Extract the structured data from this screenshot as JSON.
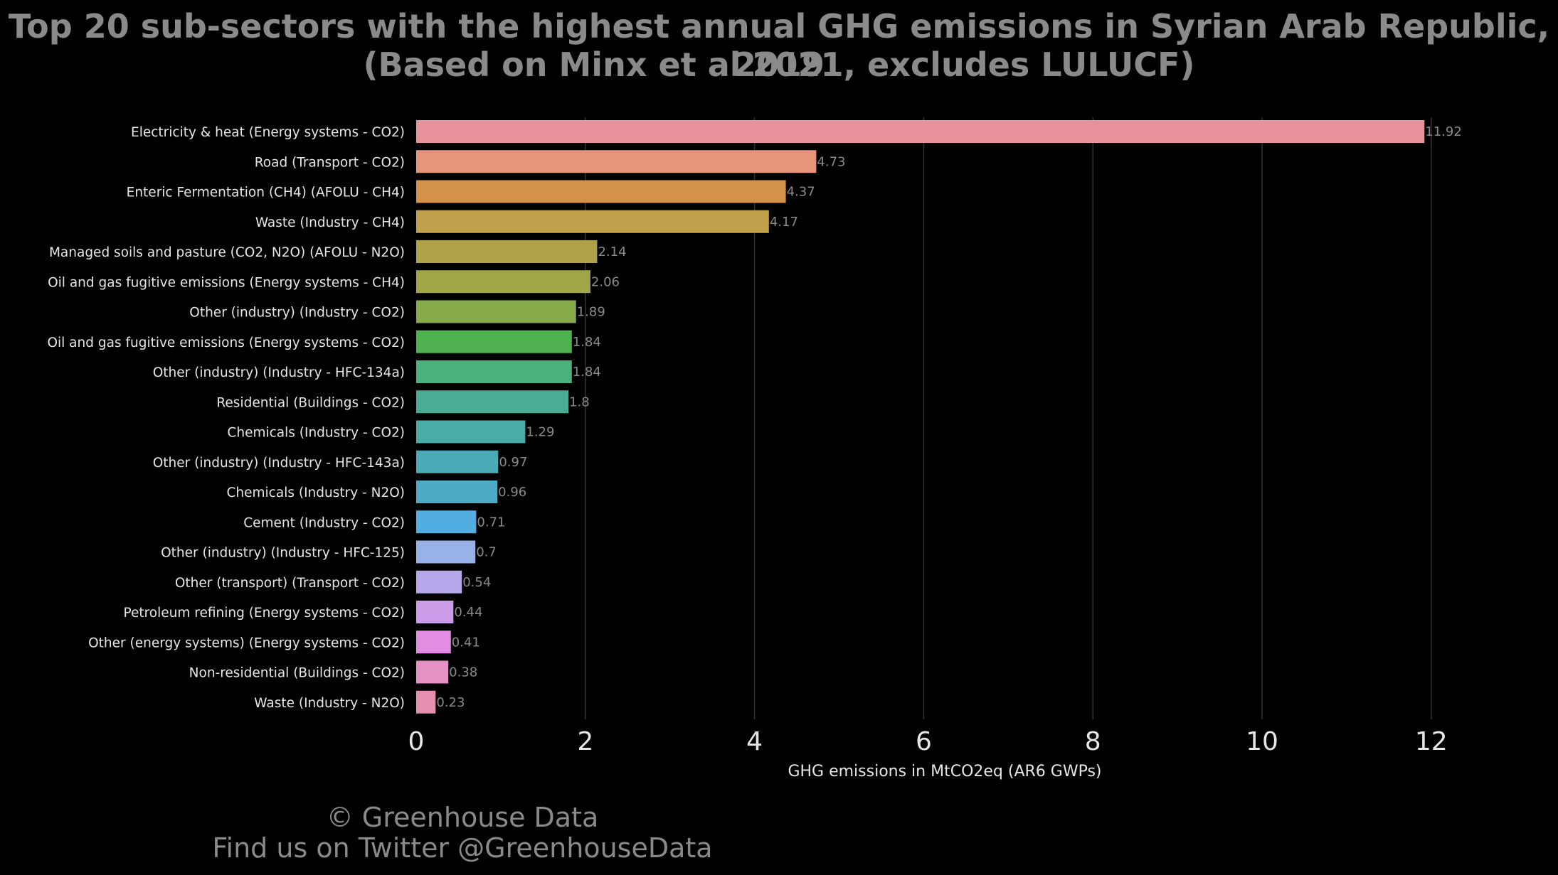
{
  "title_line1": "Top 20 sub-sectors with the highest annual GHG emissions in Syrian Arab Republic, 2019",
  "title_line2": "(Based on Minx et al 2021, excludes LULUCF)",
  "footer_line1": "© Greenhouse Data",
  "footer_line2": "Find us on Twitter @GreenhouseData",
  "chart_data": {
    "type": "bar",
    "orientation": "horizontal",
    "title": "Top 20 sub-sectors with the highest annual GHG emissions in Syrian Arab Republic, 2019 (Based on Minx et al 2021, excludes LULUCF)",
    "xlabel": "GHG emissions in MtCO2eq (AR6 GWPs)",
    "ylabel": "",
    "xlim": [
      0,
      13
    ],
    "xticks": [
      0,
      2,
      4,
      6,
      8,
      10,
      12
    ],
    "grid": "vertical",
    "categories": [
      "Electricity & heat (Energy systems - CO2)",
      "Road (Transport - CO2)",
      "Enteric Fermentation (CH4) (AFOLU - CH4)",
      "Waste (Industry - CH4)",
      "Managed soils and pasture (CO2, N2O) (AFOLU - N2O)",
      "Oil and gas fugitive emissions (Energy systems - CH4)",
      "Other (industry) (Industry - CO2)",
      "Oil and gas fugitive emissions (Energy systems - CO2)",
      "Other (industry) (Industry - HFC-134a)",
      "Residential (Buildings - CO2)",
      "Chemicals (Industry - CO2)",
      "Other (industry) (Industry - HFC-143a)",
      "Chemicals (Industry - N2O)",
      "Cement (Industry - CO2)",
      "Other (industry) (Industry - HFC-125)",
      "Other (transport) (Transport - CO2)",
      "Petroleum refining (Energy systems - CO2)",
      "Other (energy systems) (Energy systems - CO2)",
      "Non-residential (Buildings - CO2)",
      "Waste (Industry - N2O)"
    ],
    "values": [
      11.92,
      4.73,
      4.37,
      4.17,
      2.14,
      2.06,
      1.89,
      1.84,
      1.84,
      1.8,
      1.29,
      0.97,
      0.96,
      0.71,
      0.7,
      0.54,
      0.44,
      0.41,
      0.38,
      0.23
    ],
    "value_labels": [
      "11.92",
      "4.73",
      "4.37",
      "4.17",
      "2.14",
      "2.06",
      "1.89",
      "1.84",
      "1.84",
      "1.8",
      "1.29",
      "0.97",
      "0.96",
      "0.71",
      "0.7",
      "0.54",
      "0.44",
      "0.41",
      "0.38",
      "0.23"
    ],
    "colors": [
      "#e8929c",
      "#e6947b",
      "#d4914a",
      "#c0a04a",
      "#b0a248",
      "#9fa646",
      "#88ab4a",
      "#4fb050",
      "#4ab07e",
      "#49ad94",
      "#4aaca6",
      "#4aaab5",
      "#4eabc6",
      "#52aee0",
      "#98b1e8",
      "#b9a7ec",
      "#cc9ce8",
      "#e28de2",
      "#e691c6",
      "#e68eb0"
    ],
    "colors_meta": {
      "background": "#000000",
      "text": "#8a8a8a",
      "label_text": "#e6e6e6",
      "grid": "#333333"
    }
  }
}
